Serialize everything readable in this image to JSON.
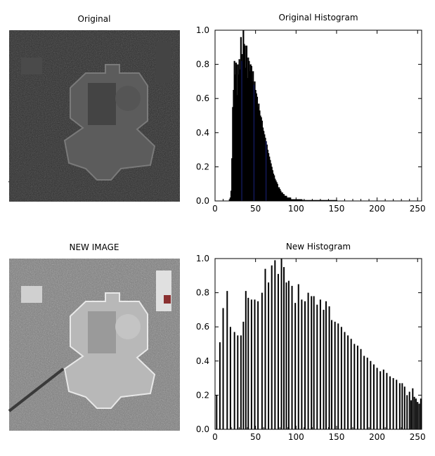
{
  "panels": {
    "original": {
      "title": "Original"
    },
    "new": {
      "title": "NEW IMAGE"
    }
  },
  "colors": {
    "bars": "#000000",
    "bar_tint": "#1a237e",
    "axis": "#000000",
    "background": "#ffffff"
  },
  "chart_data": [
    {
      "type": "bar",
      "title": "Original Histogram",
      "xlabel": "",
      "ylabel": "",
      "xlim": [
        0,
        255
      ],
      "ylim": [
        0,
        1.0
      ],
      "xticks": [
        0,
        50,
        100,
        150,
        200,
        250
      ],
      "yticks": [
        0.0,
        0.2,
        0.4,
        0.6,
        0.8,
        1.0
      ],
      "ytick_labels": [
        "0.0",
        "0.2",
        "0.4",
        "0.6",
        "0.8",
        "1.0"
      ],
      "grid": false,
      "x": [
        17,
        18,
        19,
        20,
        21,
        22,
        23,
        24,
        25,
        26,
        27,
        28,
        29,
        30,
        31,
        32,
        33,
        34,
        35,
        36,
        37,
        38,
        39,
        40,
        41,
        42,
        43,
        44,
        45,
        46,
        47,
        48,
        49,
        50,
        51,
        52,
        53,
        54,
        55,
        56,
        57,
        58,
        59,
        60,
        61,
        62,
        63,
        64,
        65,
        66,
        67,
        68,
        69,
        70,
        71,
        72,
        73,
        74,
        75,
        76,
        77,
        78,
        79,
        80,
        81,
        82,
        83,
        84,
        85,
        86,
        87,
        88,
        89,
        90,
        91,
        92,
        93,
        94,
        95,
        96,
        97,
        98,
        99,
        100,
        101,
        102,
        103,
        104,
        105,
        106,
        107,
        108,
        109,
        110,
        111,
        112,
        113,
        114,
        115,
        116,
        117,
        118,
        119,
        120,
        121,
        122,
        123,
        124,
        125,
        126,
        127,
        128,
        129,
        130,
        131,
        132,
        133,
        134,
        135,
        136,
        137,
        138,
        139,
        140,
        141,
        142,
        143,
        144,
        145,
        146,
        147,
        148,
        149,
        150
      ],
      "values": [
        0.0,
        0.01,
        0.02,
        0.06,
        0.25,
        0.55,
        0.65,
        0.82,
        0.74,
        0.81,
        0.62,
        0.8,
        0.74,
        0.83,
        0.77,
        0.96,
        0.82,
        0.86,
        1.0,
        0.92,
        0.91,
        0.78,
        0.91,
        0.72,
        0.84,
        0.82,
        0.76,
        0.8,
        0.79,
        0.7,
        0.76,
        0.68,
        0.7,
        0.65,
        0.63,
        0.61,
        0.55,
        0.57,
        0.53,
        0.5,
        0.49,
        0.47,
        0.43,
        0.41,
        0.39,
        0.37,
        0.35,
        0.33,
        0.3,
        0.28,
        0.26,
        0.24,
        0.22,
        0.2,
        0.18,
        0.16,
        0.15,
        0.13,
        0.12,
        0.11,
        0.1,
        0.08,
        0.08,
        0.07,
        0.06,
        0.05,
        0.05,
        0.04,
        0.04,
        0.03,
        0.03,
        0.03,
        0.02,
        0.02,
        0.02,
        0.02,
        0.02,
        0.01,
        0.01,
        0.01,
        0.01,
        0.01,
        0.01,
        0.01,
        0.01,
        0.01,
        0.01,
        0.01,
        0.01,
        0.01,
        0.01,
        0.005,
        0.005,
        0.005,
        0.005,
        0.005,
        0.005,
        0.005,
        0.005,
        0.005,
        0.005,
        0.005,
        0.005,
        0.005,
        0.005,
        0.005,
        0.005,
        0.005,
        0.005,
        0.005,
        0.005,
        0.005,
        0.005,
        0.005,
        0.005,
        0.005,
        0.005,
        0.005,
        0.005,
        0.005,
        0.005,
        0.005,
        0.005,
        0.005,
        0.005,
        0.005,
        0.005,
        0.005,
        0.005,
        0.005,
        0.005,
        0.005,
        0.005,
        0.005
      ]
    },
    {
      "type": "bar",
      "title": "New Histogram",
      "xlabel": "",
      "ylabel": "",
      "xlim": [
        0,
        255
      ],
      "ylim": [
        0,
        1.0
      ],
      "xticks": [
        0,
        50,
        100,
        150,
        200,
        250
      ],
      "yticks": [
        0.0,
        0.2,
        0.4,
        0.6,
        0.8,
        1.0
      ],
      "ytick_labels": [
        "0.0",
        "0.2",
        "0.4",
        "0.6",
        "0.8",
        "1.0"
      ],
      "grid": false,
      "x": [
        2,
        6,
        10,
        15,
        19,
        24,
        28,
        32,
        35,
        38,
        41,
        45,
        49,
        53,
        58,
        62,
        66,
        70,
        74,
        78,
        82,
        85,
        88,
        91,
        95,
        99,
        103,
        107,
        111,
        115,
        119,
        122,
        126,
        130,
        134,
        137,
        141,
        144,
        148,
        152,
        156,
        160,
        164,
        168,
        172,
        176,
        180,
        184,
        188,
        192,
        196,
        200,
        204,
        208,
        212,
        216,
        220,
        224,
        228,
        231,
        234,
        237,
        240,
        242,
        244,
        246,
        248,
        250,
        252,
        254
      ],
      "values": [
        0.2,
        0.51,
        0.71,
        0.81,
        0.6,
        0.57,
        0.55,
        0.55,
        0.63,
        0.81,
        0.77,
        0.76,
        0.76,
        0.75,
        0.8,
        0.94,
        0.86,
        0.96,
        0.99,
        0.91,
        1.0,
        0.95,
        0.86,
        0.87,
        0.84,
        0.74,
        0.85,
        0.76,
        0.75,
        0.8,
        0.78,
        0.78,
        0.73,
        0.76,
        0.7,
        0.75,
        0.72,
        0.64,
        0.63,
        0.62,
        0.6,
        0.57,
        0.55,
        0.53,
        0.5,
        0.49,
        0.47,
        0.43,
        0.42,
        0.4,
        0.38,
        0.36,
        0.34,
        0.35,
        0.33,
        0.31,
        0.3,
        0.29,
        0.27,
        0.27,
        0.25,
        0.2,
        0.22,
        0.17,
        0.24,
        0.19,
        0.18,
        0.16,
        0.15,
        0.18
      ]
    }
  ]
}
